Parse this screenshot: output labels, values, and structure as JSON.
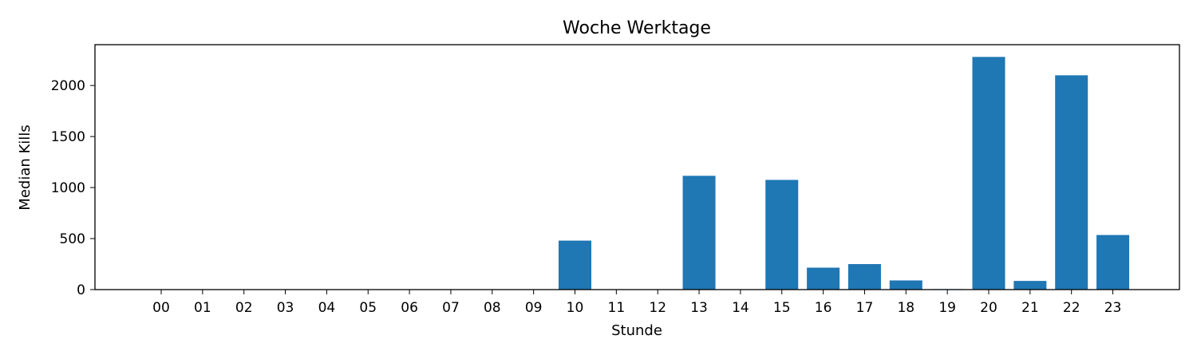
{
  "chart_data": {
    "type": "bar",
    "title": "Woche Werktage",
    "xlabel": "Stunde",
    "ylabel": "Median Kills",
    "categories": [
      "00",
      "01",
      "02",
      "03",
      "04",
      "05",
      "06",
      "07",
      "08",
      "09",
      "10",
      "11",
      "12",
      "13",
      "14",
      "15",
      "16",
      "17",
      "18",
      "19",
      "20",
      "21",
      "22",
      "23"
    ],
    "values": [
      0,
      0,
      0,
      0,
      0,
      0,
      0,
      0,
      0,
      0,
      480,
      0,
      0,
      1115,
      0,
      1075,
      215,
      250,
      90,
      5,
      2280,
      85,
      2100,
      535
    ],
    "ylim": [
      0,
      2400
    ],
    "yticks": [
      0,
      500,
      1000,
      1500,
      2000
    ],
    "grid": false,
    "bar_color": "#1f77b4"
  }
}
